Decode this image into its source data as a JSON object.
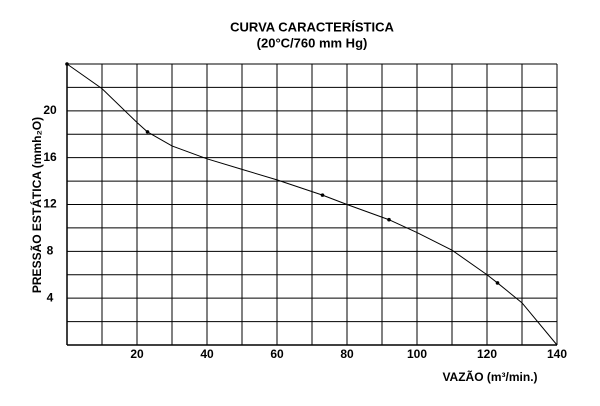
{
  "chart_data": {
    "type": "line",
    "title": "CURVA CARACTERÍSTICA",
    "subtitle": "(20°C/760 mm Hg)",
    "x_label": "VAZÃO (m³/min.)",
    "y_label": "PRESSÃO ESTÁTICA (mmh₂O)",
    "x": [
      0,
      10,
      20,
      23,
      30,
      40,
      50,
      60,
      73,
      80,
      92,
      100,
      110,
      120,
      123,
      130,
      140
    ],
    "values": [
      24,
      21.9,
      19.0,
      18.2,
      17.0,
      15.9,
      15.0,
      14.1,
      12.8,
      12.0,
      10.7,
      9.6,
      8.1,
      6.0,
      5.3,
      3.6,
      0
    ],
    "points": {
      "x": [
        0,
        23,
        73,
        92,
        123
      ],
      "values": [
        24,
        18.2,
        12.8,
        10.7,
        5.3
      ]
    },
    "color": "#000000",
    "xlim": [
      0,
      140
    ],
    "ylim": [
      0,
      24
    ],
    "xticks": [
      20,
      40,
      60,
      80,
      100,
      120,
      140
    ],
    "yticks": [
      4,
      8,
      12,
      16,
      20
    ],
    "xgrid": [
      10,
      20,
      30,
      40,
      50,
      60,
      70,
      80,
      90,
      100,
      110,
      120,
      130,
      140
    ],
    "ygrid": [
      2,
      4,
      6,
      8,
      10,
      12,
      14,
      16,
      18,
      20,
      22,
      24
    ],
    "grid": true
  }
}
